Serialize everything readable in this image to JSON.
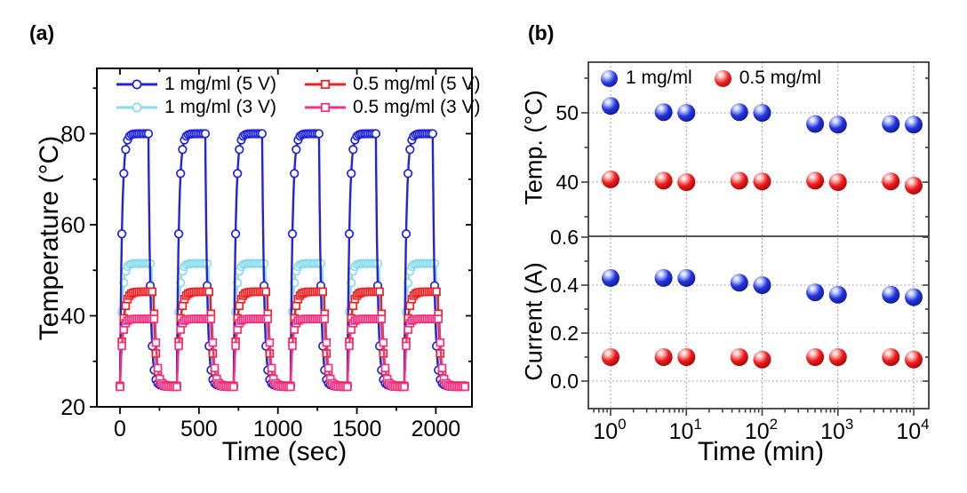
{
  "figure": {
    "panel_a_label": "(a)",
    "panel_b_label": "(b)"
  },
  "panel_a": {
    "xlabel": "Time (sec)",
    "ylabel": "Temperature (°C)",
    "legend": [
      {
        "label": "1 mg/ml (5 V)",
        "color": "#2324d6",
        "marker": "circle"
      },
      {
        "label": "0.5 mg/ml (5 V)",
        "color": "#ee2222",
        "marker": "square"
      },
      {
        "label": "1 mg/ml (3 V)",
        "color": "#8bdbed",
        "marker": "circle"
      },
      {
        "label": "0.5 mg/ml (3 V)",
        "color": "#f5307e",
        "marker": "square"
      }
    ]
  },
  "panel_b": {
    "xlabel": "Time (min)",
    "ylabel_top": "Temp. (°C)",
    "ylabel_bottom": "Current (A)",
    "legend": [
      {
        "label": "1 mg/ml",
        "color": "#2233dd",
        "highlight": "#c9d2ff",
        "dark": "#0c1478"
      },
      {
        "label": "0.5 mg/ml",
        "color": "#ee1b1b",
        "highlight": "#ffc8c8",
        "dark": "#8c0505"
      }
    ]
  },
  "chart_data": [
    {
      "id": "panel_a",
      "type": "line",
      "title": "",
      "xlabel": "Time (sec)",
      "ylabel": "Temperature (°C)",
      "xlim": [
        -160,
        2230
      ],
      "ylim": [
        20,
        94.4
      ],
      "x_ticks": [
        0,
        500,
        1000,
        1500,
        2000
      ],
      "x_minor_ticks": [
        250,
        750,
        1250,
        1750
      ],
      "y_ticks": [
        20,
        40,
        60,
        80
      ],
      "y_minor_ticks": [
        30,
        50,
        70,
        90
      ],
      "grid": false,
      "legend_position": "top-inside",
      "cycle_model": {
        "cycles": 6,
        "period_sec": 360,
        "nominal_on_sec": 180,
        "end_sec": 2190,
        "sample_step_sec": 2,
        "marker_step_sec": 12
      },
      "series": [
        {
          "name": "1 mg/ml (5 V)",
          "color": "#2324d6",
          "marker": "circle",
          "plateau_c": 80.0,
          "baseline_c": 24.6,
          "on_sec": 180,
          "rise_tau_sec": 13,
          "fall_tau_sec": 13
        },
        {
          "name": "1 mg/ml (3 V)",
          "color": "#8bdbed",
          "marker": "circle",
          "plateau_c": 51.5,
          "baseline_c": 24.6,
          "on_sec": 200,
          "rise_tau_sec": 13,
          "fall_tau_sec": 14
        },
        {
          "name": "0.5 mg/ml (5 V)",
          "color": "#ee2222",
          "marker": "square",
          "plateau_c": 45.3,
          "baseline_c": 24.6,
          "on_sec": 212,
          "rise_tau_sec": 19,
          "fall_tau_sec": 15
        },
        {
          "name": "0.5 mg/ml (3 V)",
          "color": "#f5307e",
          "marker": "square",
          "plateau_c": 39.3,
          "baseline_c": 24.4,
          "on_sec": 222,
          "rise_tau_sec": 13,
          "fall_tau_sec": 14
        }
      ],
      "draw_order": [
        "1 mg/ml (3 V)",
        "1 mg/ml (5 V)",
        "0.5 mg/ml (5 V)",
        "0.5 mg/ml (3 V)"
      ]
    },
    {
      "id": "panel_b_temp",
      "type": "scatter",
      "ylabel": "Temp. (°C)",
      "x_scale": "log",
      "x": [
        1,
        5,
        10,
        50,
        100,
        500,
        1000,
        5000,
        10000
      ],
      "ylim": [
        32.2,
        57.3
      ],
      "y_ticks": [
        40,
        50
      ],
      "y_minor_ticks": [
        35,
        45,
        55
      ],
      "grid": true,
      "series": [
        {
          "name": "1 mg/ml",
          "color": "#2233dd",
          "values": [
            51.0,
            50.1,
            50.0,
            50.1,
            50.0,
            48.4,
            48.3,
            48.4,
            48.3
          ]
        },
        {
          "name": "0.5 mg/ml",
          "color": "#ee1b1b",
          "values": [
            40.4,
            40.2,
            40.0,
            40.2,
            40.1,
            40.2,
            40.0,
            40.1,
            39.5
          ]
        }
      ]
    },
    {
      "id": "panel_b_current",
      "type": "scatter",
      "xlabel": "Time (min)",
      "ylabel": "Current (A)",
      "x_scale": "log",
      "x": [
        1,
        5,
        10,
        50,
        100,
        500,
        1000,
        5000,
        10000
      ],
      "x_tick_exponents": [
        0,
        1,
        2,
        3,
        4
      ],
      "ylim": [
        -0.115,
        0.6
      ],
      "y_ticks": [
        0,
        0.2,
        0.4,
        0.6
      ],
      "y_tick_labels": [
        "0.0",
        "0.2",
        "0.4",
        "0.6"
      ],
      "y_minor_ticks": [
        0.1,
        0.3,
        0.5
      ],
      "grid": true,
      "series": [
        {
          "name": "1 mg/ml",
          "color": "#2233dd",
          "values": [
            0.43,
            0.43,
            0.43,
            0.41,
            0.4,
            0.37,
            0.36,
            0.36,
            0.35
          ]
        },
        {
          "name": "0.5 mg/ml",
          "color": "#ee1b1b",
          "values": [
            0.1,
            0.1,
            0.1,
            0.1,
            0.09,
            0.1,
            0.1,
            0.1,
            0.09
          ]
        }
      ]
    }
  ]
}
